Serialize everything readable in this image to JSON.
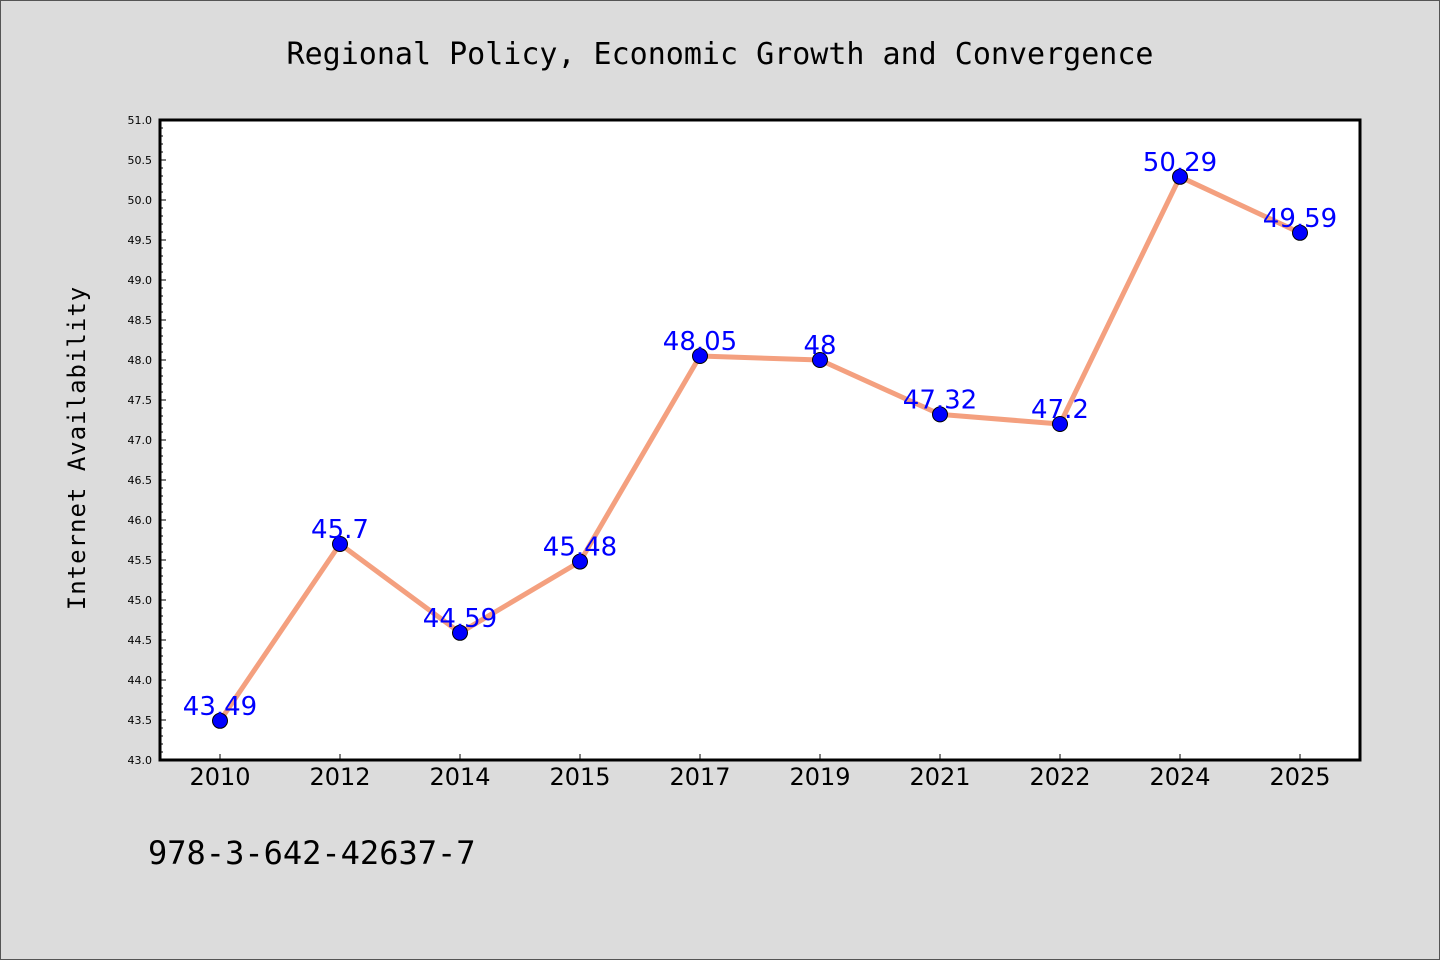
{
  "chart_data": {
    "type": "line",
    "title": "Regional Policy, Economic Growth and Convergence",
    "xlabel": "",
    "ylabel": "Internet Availability",
    "categories": [
      "2010",
      "2012",
      "2014",
      "2015",
      "2017",
      "2019",
      "2021",
      "2022",
      "2024",
      "2025"
    ],
    "values": [
      43.49,
      45.7,
      44.59,
      45.48,
      48.05,
      48.0,
      47.32,
      47.2,
      50.29,
      49.59
    ],
    "data_labels": [
      "43.49",
      "45.7",
      "44.59",
      "45.48",
      "48.05",
      "48",
      "47.32",
      "47.2",
      "50.29",
      "49.59"
    ],
    "ylim": [
      43.0,
      51.0
    ],
    "yticks": [
      "43.0",
      "43.5",
      "44.0",
      "44.5",
      "45.0",
      "45.5",
      "46.0",
      "46.5",
      "47.0",
      "47.5",
      "48.0",
      "48.5",
      "49.0",
      "49.5",
      "50.0",
      "50.5",
      "51.0"
    ],
    "grid": false,
    "line_color": "#f4a07f",
    "marker_color": "#0000ff",
    "label_color": "#0000ff"
  },
  "footer": {
    "isbn": "978-3-642-42637-7"
  }
}
